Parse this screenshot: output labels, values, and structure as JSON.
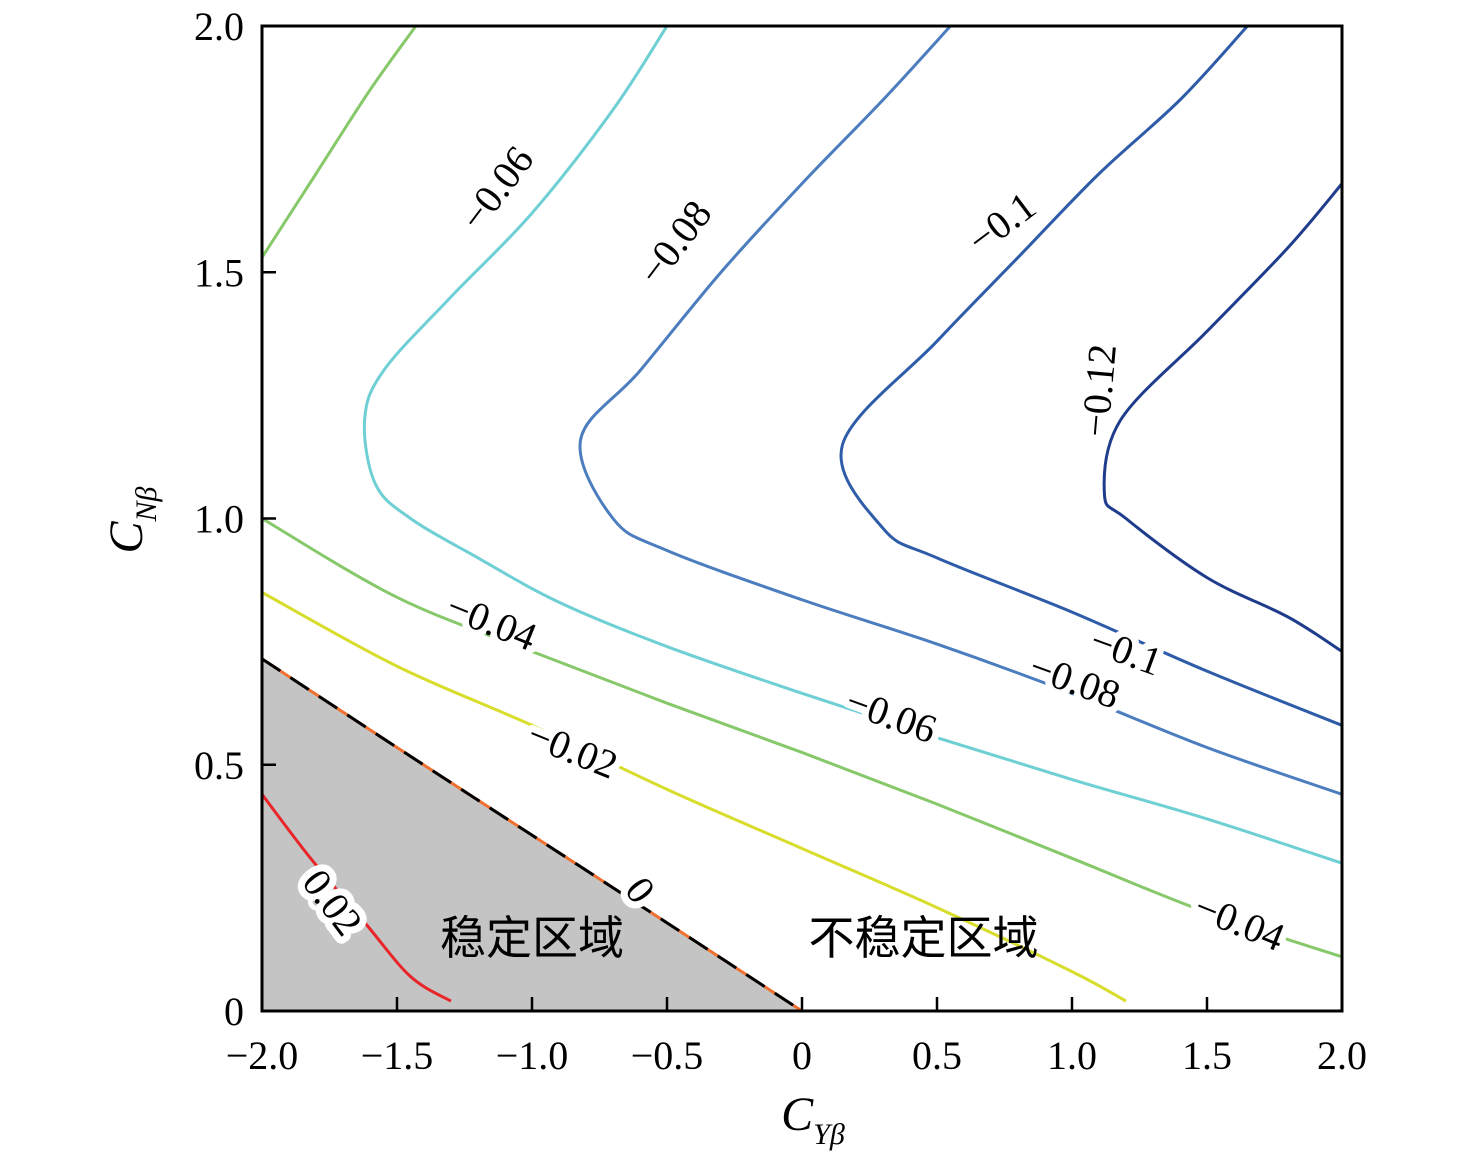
{
  "chart_data": {
    "type": "contour",
    "xlabel": {
      "main": "C",
      "sub": "Yβ"
    },
    "ylabel": {
      "main": "C",
      "sub": "Nβ"
    },
    "xlim": [
      -2.0,
      2.0
    ],
    "ylim": [
      0,
      2.0
    ],
    "x_ticks": [
      -2.0,
      -1.5,
      -1.0,
      -0.5,
      0,
      0.5,
      1.0,
      1.5,
      2.0
    ],
    "x_tick_labels": [
      "−2.0",
      "−1.5",
      "−1.0",
      "−0.5",
      "0",
      "0.5",
      "1.0",
      "1.5",
      "2.0"
    ],
    "y_ticks": [
      0,
      0.5,
      1.0,
      1.5,
      2.0
    ],
    "y_tick_labels": [
      "0",
      "0.5",
      "1.0",
      "1.5",
      "2.0"
    ],
    "grid": false,
    "shaded_region": {
      "color": "#c4c4c4",
      "polygon": [
        [
          -2.0,
          0
        ],
        [
          -2.0,
          0.715
        ],
        [
          0,
          0
        ]
      ]
    },
    "contours": [
      {
        "level": "0.02",
        "color": "#e8262a",
        "lines": [
          [
            [
              -2.0,
              0.44
            ],
            [
              -1.82,
              0.31
            ],
            [
              -1.62,
              0.18
            ],
            [
              -1.45,
              0.07
            ],
            [
              -1.3,
              0.02
            ]
          ]
        ]
      },
      {
        "level": "0",
        "color": "#f07030",
        "dashed_overlay": "#000000",
        "lines": [
          [
            [
              -2.0,
              0.715
            ],
            [
              -1.5,
              0.535
            ],
            [
              -1.0,
              0.357
            ],
            [
              -0.5,
              0.179
            ],
            [
              0,
              0
            ]
          ]
        ]
      },
      {
        "level": "-0.02",
        "color": "#d8dc2a",
        "lines": [
          [
            [
              -2.0,
              0.85
            ],
            [
              -1.5,
              0.7
            ],
            [
              -1.0,
              0.58
            ],
            [
              -0.5,
              0.45
            ],
            [
              0,
              0.33
            ],
            [
              0.5,
              0.21
            ],
            [
              1.0,
              0.08
            ],
            [
              1.2,
              0.02
            ]
          ]
        ]
      },
      {
        "level": "-0.04",
        "color": "#86c86a",
        "lines": [
          [
            [
              -2.0,
              1.0
            ],
            [
              -1.5,
              0.84
            ],
            [
              -1.0,
              0.73
            ],
            [
              -0.5,
              0.625
            ],
            [
              0,
              0.525
            ],
            [
              0.5,
              0.42
            ],
            [
              1.0,
              0.31
            ],
            [
              1.5,
              0.2
            ],
            [
              2.0,
              0.11
            ]
          ],
          [
            [
              -2.0,
              1.53
            ],
            [
              -1.8,
              1.7
            ],
            [
              -1.6,
              1.87
            ],
            [
              -1.43,
              2.0
            ]
          ]
        ]
      },
      {
        "level": "-0.06",
        "color": "#6ecfd4",
        "lines": [
          [
            [
              -0.5,
              2.0
            ],
            [
              -0.7,
              1.83
            ],
            [
              -1.0,
              1.62
            ],
            [
              -1.3,
              1.45
            ],
            [
              -1.55,
              1.3
            ],
            [
              -1.62,
              1.2
            ],
            [
              -1.58,
              1.07
            ],
            [
              -1.45,
              1.0
            ],
            [
              -1.2,
              0.92
            ],
            [
              -0.9,
              0.83
            ],
            [
              -0.5,
              0.74
            ],
            [
              0,
              0.645
            ],
            [
              0.5,
              0.555
            ],
            [
              1.0,
              0.47
            ],
            [
              1.5,
              0.39
            ],
            [
              2.0,
              0.3
            ]
          ]
        ]
      },
      {
        "level": "-0.08",
        "color": "#4b7dbf",
        "lines": [
          [
            [
              0.55,
              2.0
            ],
            [
              0.3,
              1.85
            ],
            [
              0.0,
              1.68
            ],
            [
              -0.3,
              1.5
            ],
            [
              -0.6,
              1.3
            ],
            [
              -0.82,
              1.16
            ],
            [
              -0.7,
              1.0
            ],
            [
              -0.5,
              0.935
            ],
            [
              0,
              0.835
            ],
            [
              0.5,
              0.745
            ],
            [
              1.0,
              0.645
            ],
            [
              1.5,
              0.535
            ],
            [
              2.0,
              0.44
            ]
          ]
        ]
      },
      {
        "level": "-0.1",
        "color": "#2e5ca8",
        "lines": [
          [
            [
              1.65,
              2.0
            ],
            [
              1.4,
              1.85
            ],
            [
              1.1,
              1.7
            ],
            [
              0.8,
              1.53
            ],
            [
              0.5,
              1.36
            ],
            [
              0.15,
              1.15
            ],
            [
              0.3,
              0.98
            ],
            [
              0.5,
              0.92
            ],
            [
              1.0,
              0.81
            ],
            [
              1.5,
              0.69
            ],
            [
              2.0,
              0.58
            ]
          ]
        ]
      },
      {
        "level": "-0.12",
        "color": "#1f3d8c",
        "lines": [
          [
            [
              2.0,
              1.68
            ],
            [
              1.8,
              1.55
            ],
            [
              1.5,
              1.38
            ],
            [
              1.18,
              1.2
            ],
            [
              1.12,
              1.05
            ],
            [
              1.2,
              1.0
            ],
            [
              1.5,
              0.88
            ],
            [
              1.8,
              0.8
            ],
            [
              2.0,
              0.73
            ]
          ]
        ]
      }
    ],
    "contour_labels": [
      {
        "text": "0.02",
        "x": -1.74,
        "y": 0.22,
        "angle": 53
      },
      {
        "text": "0",
        "x": -0.6,
        "y": 0.245,
        "angle": 53
      },
      {
        "text": "−0.02",
        "x": -0.85,
        "y": 0.53,
        "angle": 22
      },
      {
        "text": "−0.04",
        "x": -1.15,
        "y": 0.79,
        "angle": 22
      },
      {
        "text": "−0.04",
        "x": 1.62,
        "y": 0.18,
        "angle": 22
      },
      {
        "text": "−0.06",
        "x": -1.13,
        "y": 1.67,
        "angle": -53
      },
      {
        "text": "−0.06",
        "x": 0.33,
        "y": 0.6,
        "angle": 20
      },
      {
        "text": "−0.08",
        "x": -0.47,
        "y": 1.56,
        "angle": -53
      },
      {
        "text": "−0.08",
        "x": 1.01,
        "y": 0.67,
        "angle": 20
      },
      {
        "text": "−0.1",
        "x": 0.74,
        "y": 1.6,
        "angle": -37
      },
      {
        "text": "−0.1",
        "x": 1.2,
        "y": 0.73,
        "angle": 20
      },
      {
        "text": "−0.12",
        "x": 1.1,
        "y": 1.26,
        "angle": -85
      }
    ],
    "region_labels": [
      {
        "text": "稳定区域",
        "x": -1.0,
        "y": 0.15
      },
      {
        "text": "不稳定区域",
        "x": 0.45,
        "y": 0.15
      }
    ]
  }
}
